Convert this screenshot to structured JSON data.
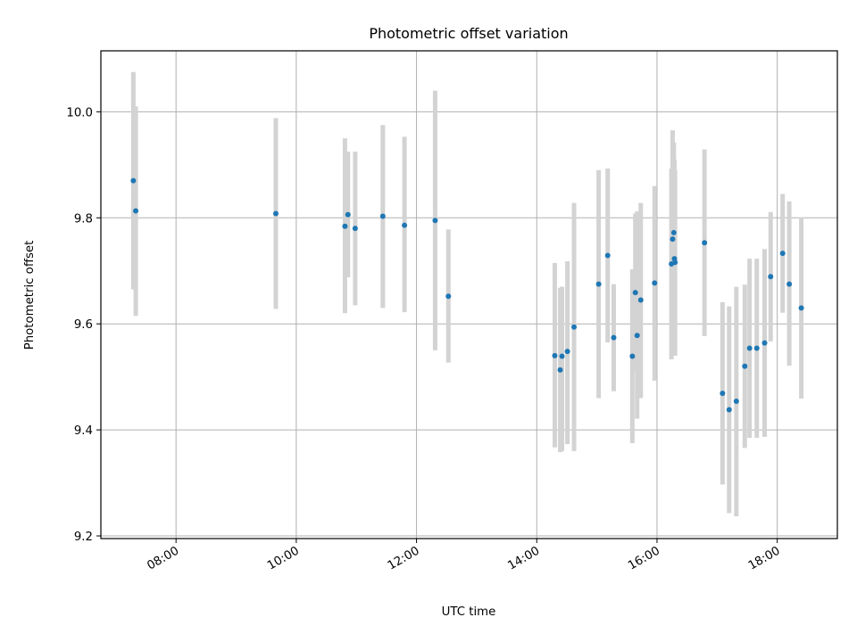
{
  "chart_data": {
    "type": "scatter",
    "title": "Photometric offset variation",
    "xlabel": "UTC time",
    "ylabel": "Photometric offset",
    "x_unit": "time of day (hours, UTC)",
    "xlim": [
      6.75,
      19.0
    ],
    "ylim": [
      9.195,
      10.115
    ],
    "xticks": [
      8,
      10,
      12,
      14,
      16,
      18
    ],
    "xtick_labels": [
      "08:00",
      "10:00",
      "12:00",
      "14:00",
      "16:00",
      "18:00"
    ],
    "yticks": [
      9.2,
      9.4,
      9.6,
      9.8,
      10.0
    ],
    "ytick_labels": [
      "9.2",
      "9.4",
      "9.6",
      "9.8",
      "10.0"
    ],
    "grid": true,
    "legend": false,
    "point_color": "#1f77b4",
    "errorbar_color": "#d3d3d3",
    "points": [
      {
        "x": 7.29,
        "y": 9.87,
        "ylow": 9.665,
        "yhigh": 10.075
      },
      {
        "x": 7.33,
        "y": 9.813,
        "ylow": 9.615,
        "yhigh": 10.01
      },
      {
        "x": 9.66,
        "y": 9.808,
        "ylow": 9.628,
        "yhigh": 9.988
      },
      {
        "x": 10.81,
        "y": 9.784,
        "ylow": 9.62,
        "yhigh": 9.95
      },
      {
        "x": 10.86,
        "y": 9.806,
        "ylow": 9.688,
        "yhigh": 9.925
      },
      {
        "x": 10.98,
        "y": 9.78,
        "ylow": 9.635,
        "yhigh": 9.925
      },
      {
        "x": 11.44,
        "y": 9.803,
        "ylow": 9.63,
        "yhigh": 9.975
      },
      {
        "x": 11.8,
        "y": 9.786,
        "ylow": 9.622,
        "yhigh": 9.953
      },
      {
        "x": 12.31,
        "y": 9.795,
        "ylow": 9.55,
        "yhigh": 10.04
      },
      {
        "x": 12.53,
        "y": 9.652,
        "ylow": 9.527,
        "yhigh": 9.778
      },
      {
        "x": 14.3,
        "y": 9.54,
        "ylow": 9.367,
        "yhigh": 9.715
      },
      {
        "x": 14.39,
        "y": 9.513,
        "ylow": 9.358,
        "yhigh": 9.668
      },
      {
        "x": 14.42,
        "y": 9.539,
        "ylow": 9.36,
        "yhigh": 9.67
      },
      {
        "x": 14.51,
        "y": 9.548,
        "ylow": 9.373,
        "yhigh": 9.718
      },
      {
        "x": 14.62,
        "y": 9.594,
        "ylow": 9.36,
        "yhigh": 9.828
      },
      {
        "x": 15.03,
        "y": 9.675,
        "ylow": 9.46,
        "yhigh": 9.89
      },
      {
        "x": 15.18,
        "y": 9.729,
        "ylow": 9.565,
        "yhigh": 9.893
      },
      {
        "x": 15.28,
        "y": 9.574,
        "ylow": 9.473,
        "yhigh": 9.675
      },
      {
        "x": 15.59,
        "y": 9.539,
        "ylow": 9.375,
        "yhigh": 9.703
      },
      {
        "x": 15.64,
        "y": 9.659,
        "ylow": 9.51,
        "yhigh": 9.808
      },
      {
        "x": 15.67,
        "y": 9.578,
        "ylow": 9.421,
        "yhigh": 9.812
      },
      {
        "x": 15.73,
        "y": 9.645,
        "ylow": 9.46,
        "yhigh": 9.828
      },
      {
        "x": 15.96,
        "y": 9.677,
        "ylow": 9.493,
        "yhigh": 9.86
      },
      {
        "x": 16.24,
        "y": 9.713,
        "ylow": 9.533,
        "yhigh": 9.893
      },
      {
        "x": 16.26,
        "y": 9.76,
        "ylow": 9.555,
        "yhigh": 9.965
      },
      {
        "x": 16.28,
        "y": 9.772,
        "ylow": 9.583,
        "yhigh": 9.942
      },
      {
        "x": 16.29,
        "y": 9.723,
        "ylow": 9.54,
        "yhigh": 9.91
      },
      {
        "x": 16.3,
        "y": 9.716,
        "ylow": 9.54,
        "yhigh": 9.89
      },
      {
        "x": 16.79,
        "y": 9.753,
        "ylow": 9.577,
        "yhigh": 9.929
      },
      {
        "x": 17.09,
        "y": 9.469,
        "ylow": 9.297,
        "yhigh": 9.641
      },
      {
        "x": 17.2,
        "y": 9.438,
        "ylow": 9.243,
        "yhigh": 9.633
      },
      {
        "x": 17.32,
        "y": 9.454,
        "ylow": 9.237,
        "yhigh": 9.67
      },
      {
        "x": 17.46,
        "y": 9.52,
        "ylow": 9.366,
        "yhigh": 9.674
      },
      {
        "x": 17.54,
        "y": 9.554,
        "ylow": 9.385,
        "yhigh": 9.723
      },
      {
        "x": 17.66,
        "y": 9.554,
        "ylow": 9.385,
        "yhigh": 9.723
      },
      {
        "x": 17.79,
        "y": 9.564,
        "ylow": 9.387,
        "yhigh": 9.741
      },
      {
        "x": 17.89,
        "y": 9.689,
        "ylow": 9.567,
        "yhigh": 9.811
      },
      {
        "x": 18.09,
        "y": 9.733,
        "ylow": 9.621,
        "yhigh": 9.845
      },
      {
        "x": 18.2,
        "y": 9.675,
        "ylow": 9.521,
        "yhigh": 9.831
      },
      {
        "x": 18.4,
        "y": 9.63,
        "ylow": 9.459,
        "yhigh": 9.801
      }
    ]
  }
}
